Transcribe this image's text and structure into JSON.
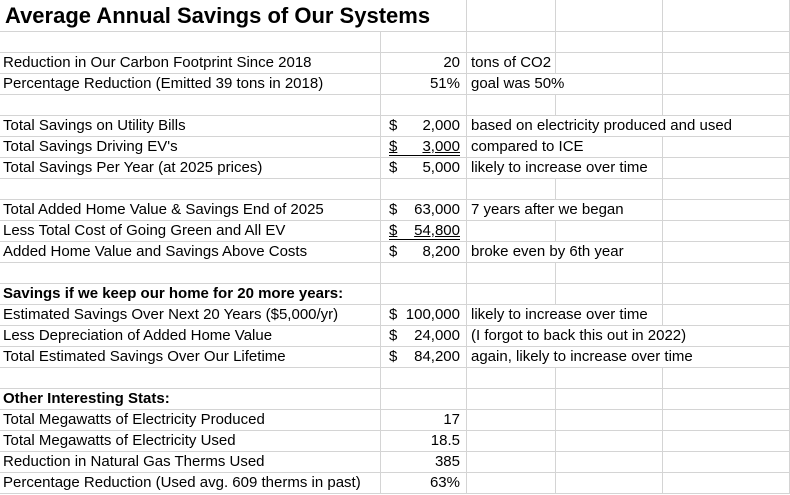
{
  "title": "Average Annual Savings of Our Systems",
  "rows": [
    {},
    {
      "label": "Reduction in Our Carbon Footprint Since 2018",
      "value": "20",
      "note": "tons of CO2"
    },
    {
      "label": "Percentage Reduction (Emitted 39 tons in 2018)",
      "value": "51%",
      "note": "goal was 50%"
    },
    {},
    {
      "label": "Total Savings on Utility Bills",
      "currency": "$",
      "amount": "2,000",
      "note": "based on electricity produced and used"
    },
    {
      "label": "Total Savings Driving EV's",
      "currency": "$",
      "amount": "3,000",
      "underline": true,
      "note": "compared to ICE"
    },
    {
      "label": "Total Savings Per Year (at 2025 prices)",
      "currency": "$",
      "amount": "5,000",
      "note": "likely to increase over time"
    },
    {},
    {
      "label": "Total Added Home Value & Savings End of 2025",
      "currency": "$",
      "amount": "63,000",
      "note": "7 years after we began"
    },
    {
      "label": "Less Total Cost of Going Green and All EV",
      "currency": "$",
      "amount": "54,800",
      "underline": true
    },
    {
      "label": "Added Home Value and Savings Above Costs",
      "currency": "$",
      "amount": "8,200",
      "note": "broke even by 6th year"
    },
    {},
    {
      "label": "Savings if we keep our home for 20 more years:",
      "bold": true
    },
    {
      "label": "Estimated Savings Over Next 20 Years ($5,000/yr)",
      "currency": "$",
      "amount": "100,000",
      "note": "likely to increase over time"
    },
    {
      "label": "Less Depreciation of Added Home Value",
      "currency": "$",
      "amount": "24,000",
      "note": "(I forgot to back this out in 2022)"
    },
    {
      "label": "Total Estimated Savings Over Our Lifetime",
      "currency": "$",
      "amount": "84,200",
      "note": "again, likely to increase over time"
    },
    {},
    {
      "label": "Other Interesting Stats:",
      "bold": true
    },
    {
      "label": "Total Megawatts of Electricity Produced",
      "value": "17"
    },
    {
      "label": "Total Megawatts of Electricity Used",
      "value": "18.5"
    },
    {
      "label": "Reduction in Natural Gas Therms Used",
      "value": "385"
    },
    {
      "label": "Percentage Reduction (Used avg. 609 therms in past)",
      "value": "63%"
    }
  ]
}
